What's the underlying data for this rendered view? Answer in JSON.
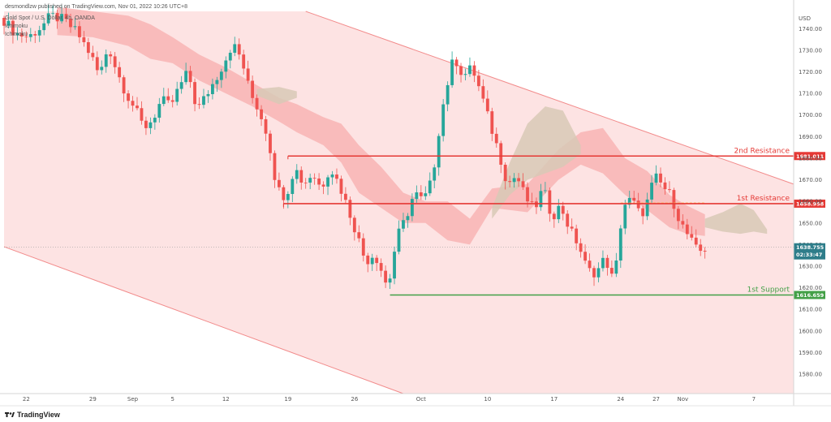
{
  "header": {
    "publish_line": "desmondlzw published on TradingView.com, Nov 01, 2022 10:26 UTC+8",
    "symbol_line": "Gold Spot / U.S. Dollar, 4h, OANDA",
    "indicator_1": "Ichimoku",
    "indicator_2": "Ichimoku"
  },
  "footer": {
    "brand": "TradingView",
    "logo_icon": "tradingview-logo-icon"
  },
  "colors": {
    "up": "#26a69a",
    "down": "#ef5350",
    "channel_fill": "#fde0e0",
    "channel_line": "#f28b8b",
    "resistance": "#e53935",
    "support": "#43a047",
    "cloud_bear": "#f8b4b4",
    "cloud_bull": "#d8c9b6"
  },
  "chart_data": {
    "type": "candlestick",
    "title": "",
    "currency": "USD",
    "ylim": [
      1571,
      1748
    ],
    "y_ticks": [
      1580,
      1590,
      1600,
      1610,
      1620,
      1630,
      1640,
      1650,
      1660,
      1670,
      1680,
      1690,
      1700,
      1710,
      1720,
      1730,
      1740
    ],
    "y_tick_labels": [
      "1580.00",
      "1590.00",
      "1600.00",
      "1610.00",
      "1620.00",
      "1630.00",
      "1640.00",
      "1650.00",
      "1660.00",
      "1670.00",
      "1680.00",
      "1690.00",
      "1700.00",
      "1710.00",
      "1720.00",
      "1730.00",
      "1740.00"
    ],
    "x_ticks": [
      {
        "label": "22",
        "i": 5
      },
      {
        "label": "29",
        "i": 20
      },
      {
        "label": "Sep",
        "i": 29
      },
      {
        "label": "5",
        "i": 38
      },
      {
        "label": "12",
        "i": 50
      },
      {
        "label": "19",
        "i": 64
      },
      {
        "label": "26",
        "i": 79
      },
      {
        "label": "Oct",
        "i": 94
      },
      {
        "label": "10",
        "i": 109
      },
      {
        "label": "17",
        "i": 124
      },
      {
        "label": "24",
        "i": 139
      },
      {
        "label": "27",
        "i": 147
      },
      {
        "label": "Nov",
        "i": 153
      },
      {
        "label": "7",
        "i": 169
      }
    ],
    "x_range": [
      0,
      178
    ],
    "levels": [
      {
        "name": "2nd Resistance",
        "value": 1681.011,
        "tag": "1681.011",
        "kind": "resistance",
        "start": 64
      },
      {
        "name": "1st Resistance",
        "value": 1658.958,
        "tag": "1658.958",
        "kind": "resistance",
        "start": 63
      },
      {
        "name": "1st Support",
        "value": 1616.659,
        "tag": "1616.659",
        "kind": "support",
        "start": 87
      }
    ],
    "current_price": {
      "value": "1638.755",
      "countdown": "02:33:47",
      "y": 1638.755
    },
    "channel": {
      "upper": [
        [
          68,
          1748
        ],
        [
          178,
          1668
        ]
      ],
      "lower": [
        [
          0,
          1639
        ],
        [
          90,
          1571
        ]
      ]
    },
    "key_points": [
      [
        0,
        1745
      ],
      [
        3,
        1738
      ],
      [
        6,
        1736
      ],
      [
        9,
        1741
      ],
      [
        11,
        1746
      ],
      [
        14,
        1744
      ],
      [
        17,
        1738
      ],
      [
        20,
        1728
      ],
      [
        22,
        1718
      ],
      [
        24,
        1732
      ],
      [
        26,
        1720
      ],
      [
        28,
        1710
      ],
      [
        30,
        1703
      ],
      [
        32,
        1694
      ],
      [
        34,
        1698
      ],
      [
        36,
        1707
      ],
      [
        38,
        1704
      ],
      [
        40,
        1713
      ],
      [
        42,
        1720
      ],
      [
        44,
        1702
      ],
      [
        46,
        1709
      ],
      [
        48,
        1716
      ],
      [
        50,
        1724
      ],
      [
        52,
        1733
      ],
      [
        54,
        1726
      ],
      [
        56,
        1710
      ],
      [
        58,
        1702
      ],
      [
        60,
        1690
      ],
      [
        62,
        1666
      ],
      [
        64,
        1662
      ],
      [
        66,
        1676
      ],
      [
        68,
        1668
      ],
      [
        70,
        1673
      ],
      [
        72,
        1666
      ],
      [
        74,
        1676
      ],
      [
        76,
        1668
      ],
      [
        78,
        1657
      ],
      [
        80,
        1645
      ],
      [
        82,
        1632
      ],
      [
        84,
        1636
      ],
      [
        86,
        1626
      ],
      [
        87,
        1619
      ],
      [
        89,
        1643
      ],
      [
        91,
        1652
      ],
      [
        93,
        1664
      ],
      [
        95,
        1660
      ],
      [
        97,
        1670
      ],
      [
        99,
        1700
      ],
      [
        101,
        1720
      ],
      [
        102,
        1727
      ],
      [
        104,
        1718
      ],
      [
        106,
        1722
      ],
      [
        108,
        1710
      ],
      [
        110,
        1696
      ],
      [
        112,
        1683
      ],
      [
        114,
        1668
      ],
      [
        116,
        1672
      ],
      [
        118,
        1662
      ],
      [
        120,
        1656
      ],
      [
        122,
        1666
      ],
      [
        124,
        1653
      ],
      [
        126,
        1658
      ],
      [
        128,
        1647
      ],
      [
        130,
        1640
      ],
      [
        132,
        1628
      ],
      [
        134,
        1627
      ],
      [
        136,
        1634
      ],
      [
        138,
        1622
      ],
      [
        140,
        1658
      ],
      [
        142,
        1661
      ],
      [
        144,
        1653
      ],
      [
        146,
        1662
      ],
      [
        147,
        1672
      ],
      [
        149,
        1667
      ],
      [
        151,
        1662
      ],
      [
        153,
        1650
      ],
      [
        155,
        1643
      ],
      [
        157,
        1636
      ],
      [
        158,
        1638
      ]
    ],
    "cloud_red": [
      [
        12,
        1750,
        1737
      ],
      [
        20,
        1748,
        1736
      ],
      [
        28,
        1746,
        1732
      ],
      [
        33,
        1742,
        1726
      ],
      [
        38,
        1736,
        1724
      ],
      [
        44,
        1728,
        1716
      ],
      [
        50,
        1722,
        1710
      ],
      [
        56,
        1715,
        1704
      ],
      [
        62,
        1708,
        1697
      ],
      [
        66,
        1705,
        1692
      ],
      [
        72,
        1699,
        1686
      ],
      [
        76,
        1696,
        1678
      ],
      [
        80,
        1686,
        1664
      ],
      [
        85,
        1676,
        1657
      ],
      [
        90,
        1664,
        1650
      ],
      [
        95,
        1660,
        1650
      ],
      [
        100,
        1660,
        1642
      ],
      [
        105,
        1652,
        1640
      ],
      [
        110,
        1666,
        1657
      ],
      [
        118,
        1668,
        1655
      ],
      [
        125,
        1684,
        1670
      ],
      [
        130,
        1692,
        1677
      ],
      [
        135,
        1694,
        1673
      ],
      [
        140,
        1680,
        1663
      ],
      [
        145,
        1674,
        1656
      ],
      [
        150,
        1663,
        1648
      ],
      [
        154,
        1658,
        1645
      ],
      [
        158,
        1654,
        1644
      ]
    ],
    "cloud_tan": [
      [
        57,
        1712,
        1709
      ],
      [
        62,
        1713,
        1705
      ],
      [
        66,
        1711,
        1708
      ],
      [
        110,
        1657,
        1652
      ],
      [
        114,
        1678,
        1663
      ],
      [
        118,
        1696,
        1670
      ],
      [
        122,
        1704,
        1673
      ],
      [
        126,
        1702,
        1676
      ],
      [
        130,
        1686,
        1682
      ],
      [
        158,
        1652,
        1648
      ],
      [
        162,
        1655,
        1646
      ],
      [
        166,
        1659,
        1645
      ],
      [
        169,
        1656,
        1646
      ],
      [
        172,
        1647,
        1645
      ]
    ],
    "dashed_ma": [
      [
        139,
        1659.3
      ],
      [
        158,
        1659.3
      ]
    ],
    "dashed_ma_ext": [
      [
        158,
        1658.9
      ],
      [
        178,
        1658.9
      ]
    ]
  }
}
